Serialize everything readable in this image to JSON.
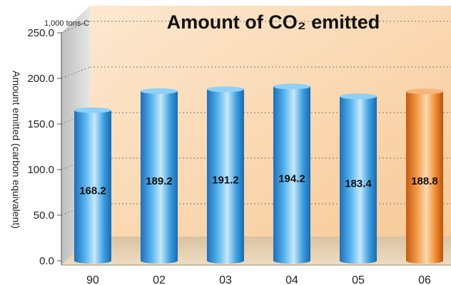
{
  "chart_data": {
    "type": "bar",
    "title": "Amount of CO₂ emitted",
    "unit_label": "1,000 tons-C",
    "ylabel": "Amount emitted (carbon equivalent)",
    "xlabel": "",
    "categories": [
      "90",
      "02",
      "03",
      "04",
      "05",
      "06"
    ],
    "values": [
      168.2,
      189.2,
      191.2,
      194.2,
      183.4,
      188.8
    ],
    "value_labels": [
      "168.2",
      "189.2",
      "191.2",
      "194.2",
      "183.4",
      "188.8"
    ],
    "yticks": [
      "0.0",
      "50.0",
      "100.0",
      "150.0",
      "200.0",
      "250.0"
    ],
    "ylim": [
      0,
      250
    ],
    "grid": true,
    "legend": "none",
    "colors": {
      "bar": "#3a9ee0",
      "highlight_bar": "#f08a30",
      "background_top": "#fbe3c8",
      "floor": "#e6cfae"
    },
    "highlight_index": 5
  }
}
